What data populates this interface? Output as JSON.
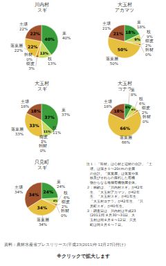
{
  "chart_data": [
    {
      "type": "pie",
      "title": "川内村\nスギ",
      "categories": [
        "葉",
        "枝",
        "樹皮",
        "幹材",
        "落葉層",
        "土壌"
      ],
      "values": [
        40,
        13,
        3,
        0,
        22,
        22
      ],
      "value_labels": [
        "40%",
        "13%",
        "3%",
        "0%",
        "22%",
        "22%"
      ],
      "colors": [
        "#3a9e3a",
        "#c8dc64",
        "#f0a028",
        "#d2691e",
        "#e8c040",
        "#a0522d"
      ],
      "data_labels": true
    },
    {
      "type": "pie",
      "title": "大玉村\nアカマツ",
      "categories": [
        "葉",
        "枝",
        "樹皮",
        "幹材",
        "落葉層",
        "土壌"
      ],
      "values": [
        18,
        9,
        2,
        0,
        50,
        21
      ],
      "value_labels": [
        "18%",
        "9%",
        "2%",
        "0%",
        "50%",
        "21%"
      ],
      "colors": [
        "#3a9e3a",
        "#c8dc64",
        "#f0a028",
        "#d2691e",
        "#e8c040",
        "#a0522d"
      ],
      "data_labels": true
    },
    {
      "type": "pie",
      "title": "大玉村\nスギ",
      "categories": [
        "葉",
        "枝",
        "樹皮",
        "幹材",
        "落葉層",
        "土壌"
      ],
      "values": [
        37,
        11,
        1,
        0,
        33,
        18
      ],
      "value_labels": [
        "37%",
        "11%",
        "1%",
        "0%",
        "33%",
        "18%"
      ],
      "colors": [
        "#3a9e3a",
        "#c8dc64",
        "#f0a028",
        "#d2691e",
        "#e8c040",
        "#a0522d"
      ],
      "data_labels": true
    },
    {
      "type": "pie",
      "title": "大玉村\nコナラ",
      "categories": [
        "葉",
        "枝",
        "樹皮",
        "幹材",
        "落葉層",
        "土壌"
      ],
      "values": [
        8,
        6,
        2,
        0,
        66,
        18
      ],
      "value_labels": [
        "8%",
        "6%",
        "2%",
        "0%",
        "66%",
        "18%"
      ],
      "colors": [
        "#3a9e3a",
        "#c8dc64",
        "#f0a028",
        "#d2691e",
        "#e8c040",
        "#a0522d"
      ],
      "data_labels": true
    },
    {
      "type": "pie",
      "title": "只見町\nスギ",
      "categories": [
        "葉",
        "枝",
        "樹皮",
        "幹材",
        "落葉層",
        "土壌"
      ],
      "values": [
        24,
        6,
        2,
        0,
        34,
        34
      ],
      "value_labels": [
        "24%",
        "6%",
        "2%",
        "0%",
        "34%",
        "34%"
      ],
      "colors": [
        "#3a9e3a",
        "#c8dc64",
        "#f0a028",
        "#d2691e",
        "#e8c040",
        "#a0522d"
      ],
      "data_labels": true
    }
  ],
  "annotations": [
    "注１：「幹材」は心材と辺材の合計。「土\n　壌」は深さ０〜20cmの全層\n　の合計。「落葉層」は落葉や落\n　枝及びそれらの腐朽した有機\n　物からなる堆積有機物層全体。\n２：林齢は、「川内村スギ」が42年\n　生、「大玉村アカマツ」が42年\n　生、「大玉村スギ」が41年生、\n　「大玉村コナラ」が42年生、「只\n　見町スギ」が40年生。\n３：調査日は、川内村は平成23\n　(2011)年８月30〜31日、大\n　玉村は同８月８〜12日、只見\n　町は同９月６〜７日。",
    "資料：農林水産省プレスリリース(平成23(2011)年12月27日付け)",
    "※クリックで拡大します"
  ]
}
